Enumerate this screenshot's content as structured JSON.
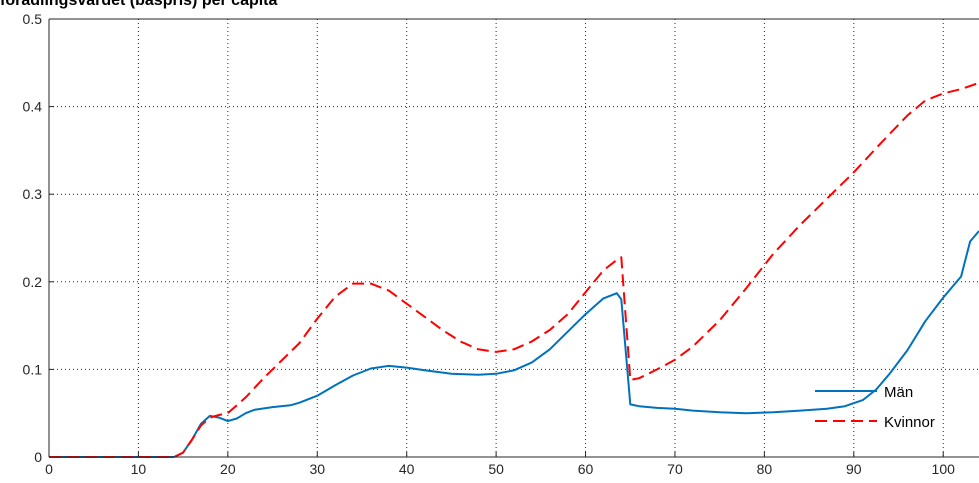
{
  "chart_data": {
    "type": "line",
    "title": "förädlingsvärdet (baspris) per capita",
    "xlabel": "",
    "ylabel": "",
    "xlim": [
      0,
      104
    ],
    "ylim": [
      0,
      0.5
    ],
    "xticks": [
      0,
      10,
      20,
      30,
      40,
      50,
      60,
      70,
      80,
      90,
      100
    ],
    "yticks": [
      0,
      0.1,
      0.2,
      0.3,
      0.4,
      0.5
    ],
    "xtick_labels": [
      "0",
      "10",
      "20",
      "30",
      "40",
      "50",
      "60",
      "70",
      "80",
      "90",
      "100"
    ],
    "ytick_labels": [
      "0",
      "0.1",
      "0.2",
      "0.3",
      "0.4",
      "0.5"
    ],
    "grid": true,
    "legend_position": "bottom-right",
    "series": [
      {
        "name": "Män",
        "color": "#0072BD",
        "style": "solid",
        "points": [
          [
            0,
            0
          ],
          [
            14,
            0
          ],
          [
            15,
            0.005
          ],
          [
            16,
            0.02
          ],
          [
            17,
            0.038
          ],
          [
            18,
            0.047
          ],
          [
            19,
            0.045
          ],
          [
            20,
            0.041
          ],
          [
            21,
            0.044
          ],
          [
            22,
            0.05
          ],
          [
            23,
            0.054
          ],
          [
            25,
            0.057
          ],
          [
            27,
            0.059
          ],
          [
            28,
            0.062
          ],
          [
            30,
            0.07
          ],
          [
            32,
            0.082
          ],
          [
            34,
            0.093
          ],
          [
            36,
            0.101
          ],
          [
            38,
            0.104
          ],
          [
            40,
            0.102
          ],
          [
            42,
            0.099
          ],
          [
            45,
            0.095
          ],
          [
            48,
            0.094
          ],
          [
            50,
            0.095
          ],
          [
            52,
            0.099
          ],
          [
            54,
            0.108
          ],
          [
            56,
            0.123
          ],
          [
            58,
            0.143
          ],
          [
            60,
            0.163
          ],
          [
            62,
            0.181
          ],
          [
            63.5,
            0.187
          ],
          [
            64,
            0.18
          ],
          [
            65,
            0.06
          ],
          [
            66,
            0.058
          ],
          [
            68,
            0.056
          ],
          [
            70,
            0.055
          ],
          [
            72,
            0.053
          ],
          [
            75,
            0.051
          ],
          [
            78,
            0.05
          ],
          [
            81,
            0.051
          ],
          [
            84,
            0.053
          ],
          [
            87,
            0.055
          ],
          [
            89,
            0.058
          ],
          [
            91,
            0.065
          ],
          [
            92.5,
            0.077
          ],
          [
            94,
            0.095
          ],
          [
            96,
            0.122
          ],
          [
            98,
            0.155
          ],
          [
            100,
            0.182
          ],
          [
            102,
            0.206
          ],
          [
            103,
            0.246
          ],
          [
            104,
            0.258
          ]
        ]
      },
      {
        "name": "Kvinnor",
        "color": "#FF0000",
        "style": "dashed",
        "points": [
          [
            0,
            0
          ],
          [
            14,
            0
          ],
          [
            15,
            0.005
          ],
          [
            16,
            0.02
          ],
          [
            17,
            0.036
          ],
          [
            18,
            0.045
          ],
          [
            19,
            0.048
          ],
          [
            20,
            0.05
          ],
          [
            22,
            0.068
          ],
          [
            24,
            0.09
          ],
          [
            26,
            0.11
          ],
          [
            28,
            0.13
          ],
          [
            30,
            0.158
          ],
          [
            32,
            0.183
          ],
          [
            34,
            0.198
          ],
          [
            36,
            0.198
          ],
          [
            38,
            0.19
          ],
          [
            40,
            0.175
          ],
          [
            42,
            0.16
          ],
          [
            44,
            0.145
          ],
          [
            46,
            0.132
          ],
          [
            48,
            0.123
          ],
          [
            50,
            0.12
          ],
          [
            52,
            0.123
          ],
          [
            54,
            0.132
          ],
          [
            56,
            0.145
          ],
          [
            58,
            0.163
          ],
          [
            60,
            0.188
          ],
          [
            62,
            0.213
          ],
          [
            63.5,
            0.225
          ],
          [
            64,
            0.228
          ],
          [
            65,
            0.088
          ],
          [
            66,
            0.09
          ],
          [
            68,
            0.1
          ],
          [
            70,
            0.111
          ],
          [
            72,
            0.126
          ],
          [
            75,
            0.156
          ],
          [
            78,
            0.193
          ],
          [
            81,
            0.232
          ],
          [
            84,
            0.265
          ],
          [
            87,
            0.295
          ],
          [
            90,
            0.325
          ],
          [
            93,
            0.358
          ],
          [
            96,
            0.39
          ],
          [
            98,
            0.407
          ],
          [
            100,
            0.415
          ],
          [
            102,
            0.42
          ],
          [
            104,
            0.427
          ]
        ]
      }
    ]
  }
}
